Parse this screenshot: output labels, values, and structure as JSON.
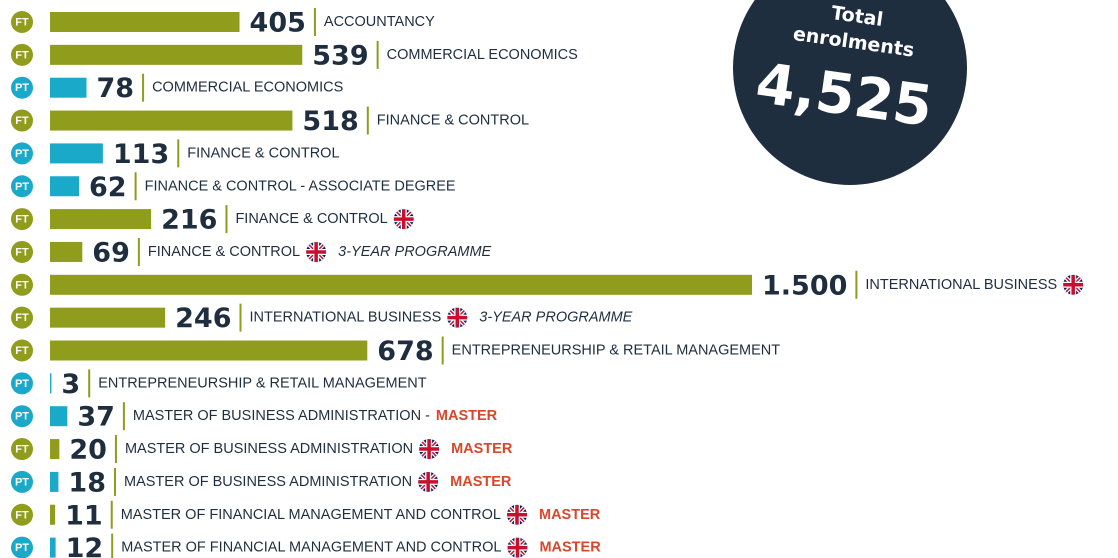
{
  "chart_data": {
    "type": "bar",
    "orientation": "horizontal",
    "categories": [
      "ACCOUNTANCY",
      "COMMERCIAL ECONOMICS",
      "COMMERCIAL ECONOMICS",
      "FINANCE & CONTROL",
      "FINANCE & CONTROL",
      "FINANCE & CONTROL - ASSOCIATE DEGREE",
      "FINANCE & CONTROL",
      "FINANCE & CONTROL",
      "INTERNATIONAL BUSINESS",
      "INTERNATIONAL BUSINESS",
      "ENTREPRENEURSHIP & RETAIL MANAGEMENT",
      "ENTREPRENEURSHIP & RETAIL MANAGEMENT",
      "MASTER OF BUSINESS ADMINISTRATION -",
      "MASTER OF BUSINESS ADMINISTRATION",
      "MASTER OF BUSINESS ADMINISTRATION",
      "MASTER OF FINANCIAL MANAGEMENT AND CONTROL",
      "MASTER OF FINANCIAL MANAGEMENT AND CONTROL"
    ],
    "modes": [
      "FT",
      "FT",
      "PT",
      "FT",
      "PT",
      "PT",
      "FT",
      "FT",
      "FT",
      "FT",
      "FT",
      "PT",
      "PT",
      "FT",
      "PT",
      "FT",
      "PT"
    ],
    "values": [
      405,
      539,
      78,
      518,
      113,
      62,
      216,
      69,
      1500,
      246,
      678,
      3,
      37,
      20,
      18,
      11,
      12
    ],
    "value_labels": [
      "405",
      "539",
      "78",
      "518",
      "113",
      "62",
      "216",
      "69",
      "1.500",
      "246",
      "678",
      "3",
      "37",
      "20",
      "18",
      "11",
      "12"
    ],
    "english": [
      false,
      false,
      false,
      false,
      false,
      false,
      true,
      true,
      true,
      true,
      false,
      false,
      false,
      true,
      true,
      true,
      true
    ],
    "notes": [
      null,
      null,
      null,
      null,
      null,
      null,
      null,
      {
        "text": "3-YEAR PROGRAMME",
        "style": "italic"
      },
      null,
      {
        "text": "3-YEAR PROGRAMME",
        "style": "italic"
      },
      null,
      null,
      {
        "text": "MASTER",
        "style": "bold"
      },
      {
        "text": "MASTER",
        "style": "bold"
      },
      {
        "text": "MASTER",
        "style": "bold"
      },
      {
        "text": "MASTER",
        "style": "bold"
      },
      {
        "text": "MASTER",
        "style": "bold"
      }
    ],
    "colors": {
      "FT": "#8f9c1c",
      "PT": "#1aa9c9"
    },
    "xlim": [
      0,
      1500
    ],
    "total": {
      "title": [
        "Total",
        "enrolments"
      ],
      "value": 4525,
      "value_label": "4,525",
      "color": "#1f2e3f"
    }
  }
}
